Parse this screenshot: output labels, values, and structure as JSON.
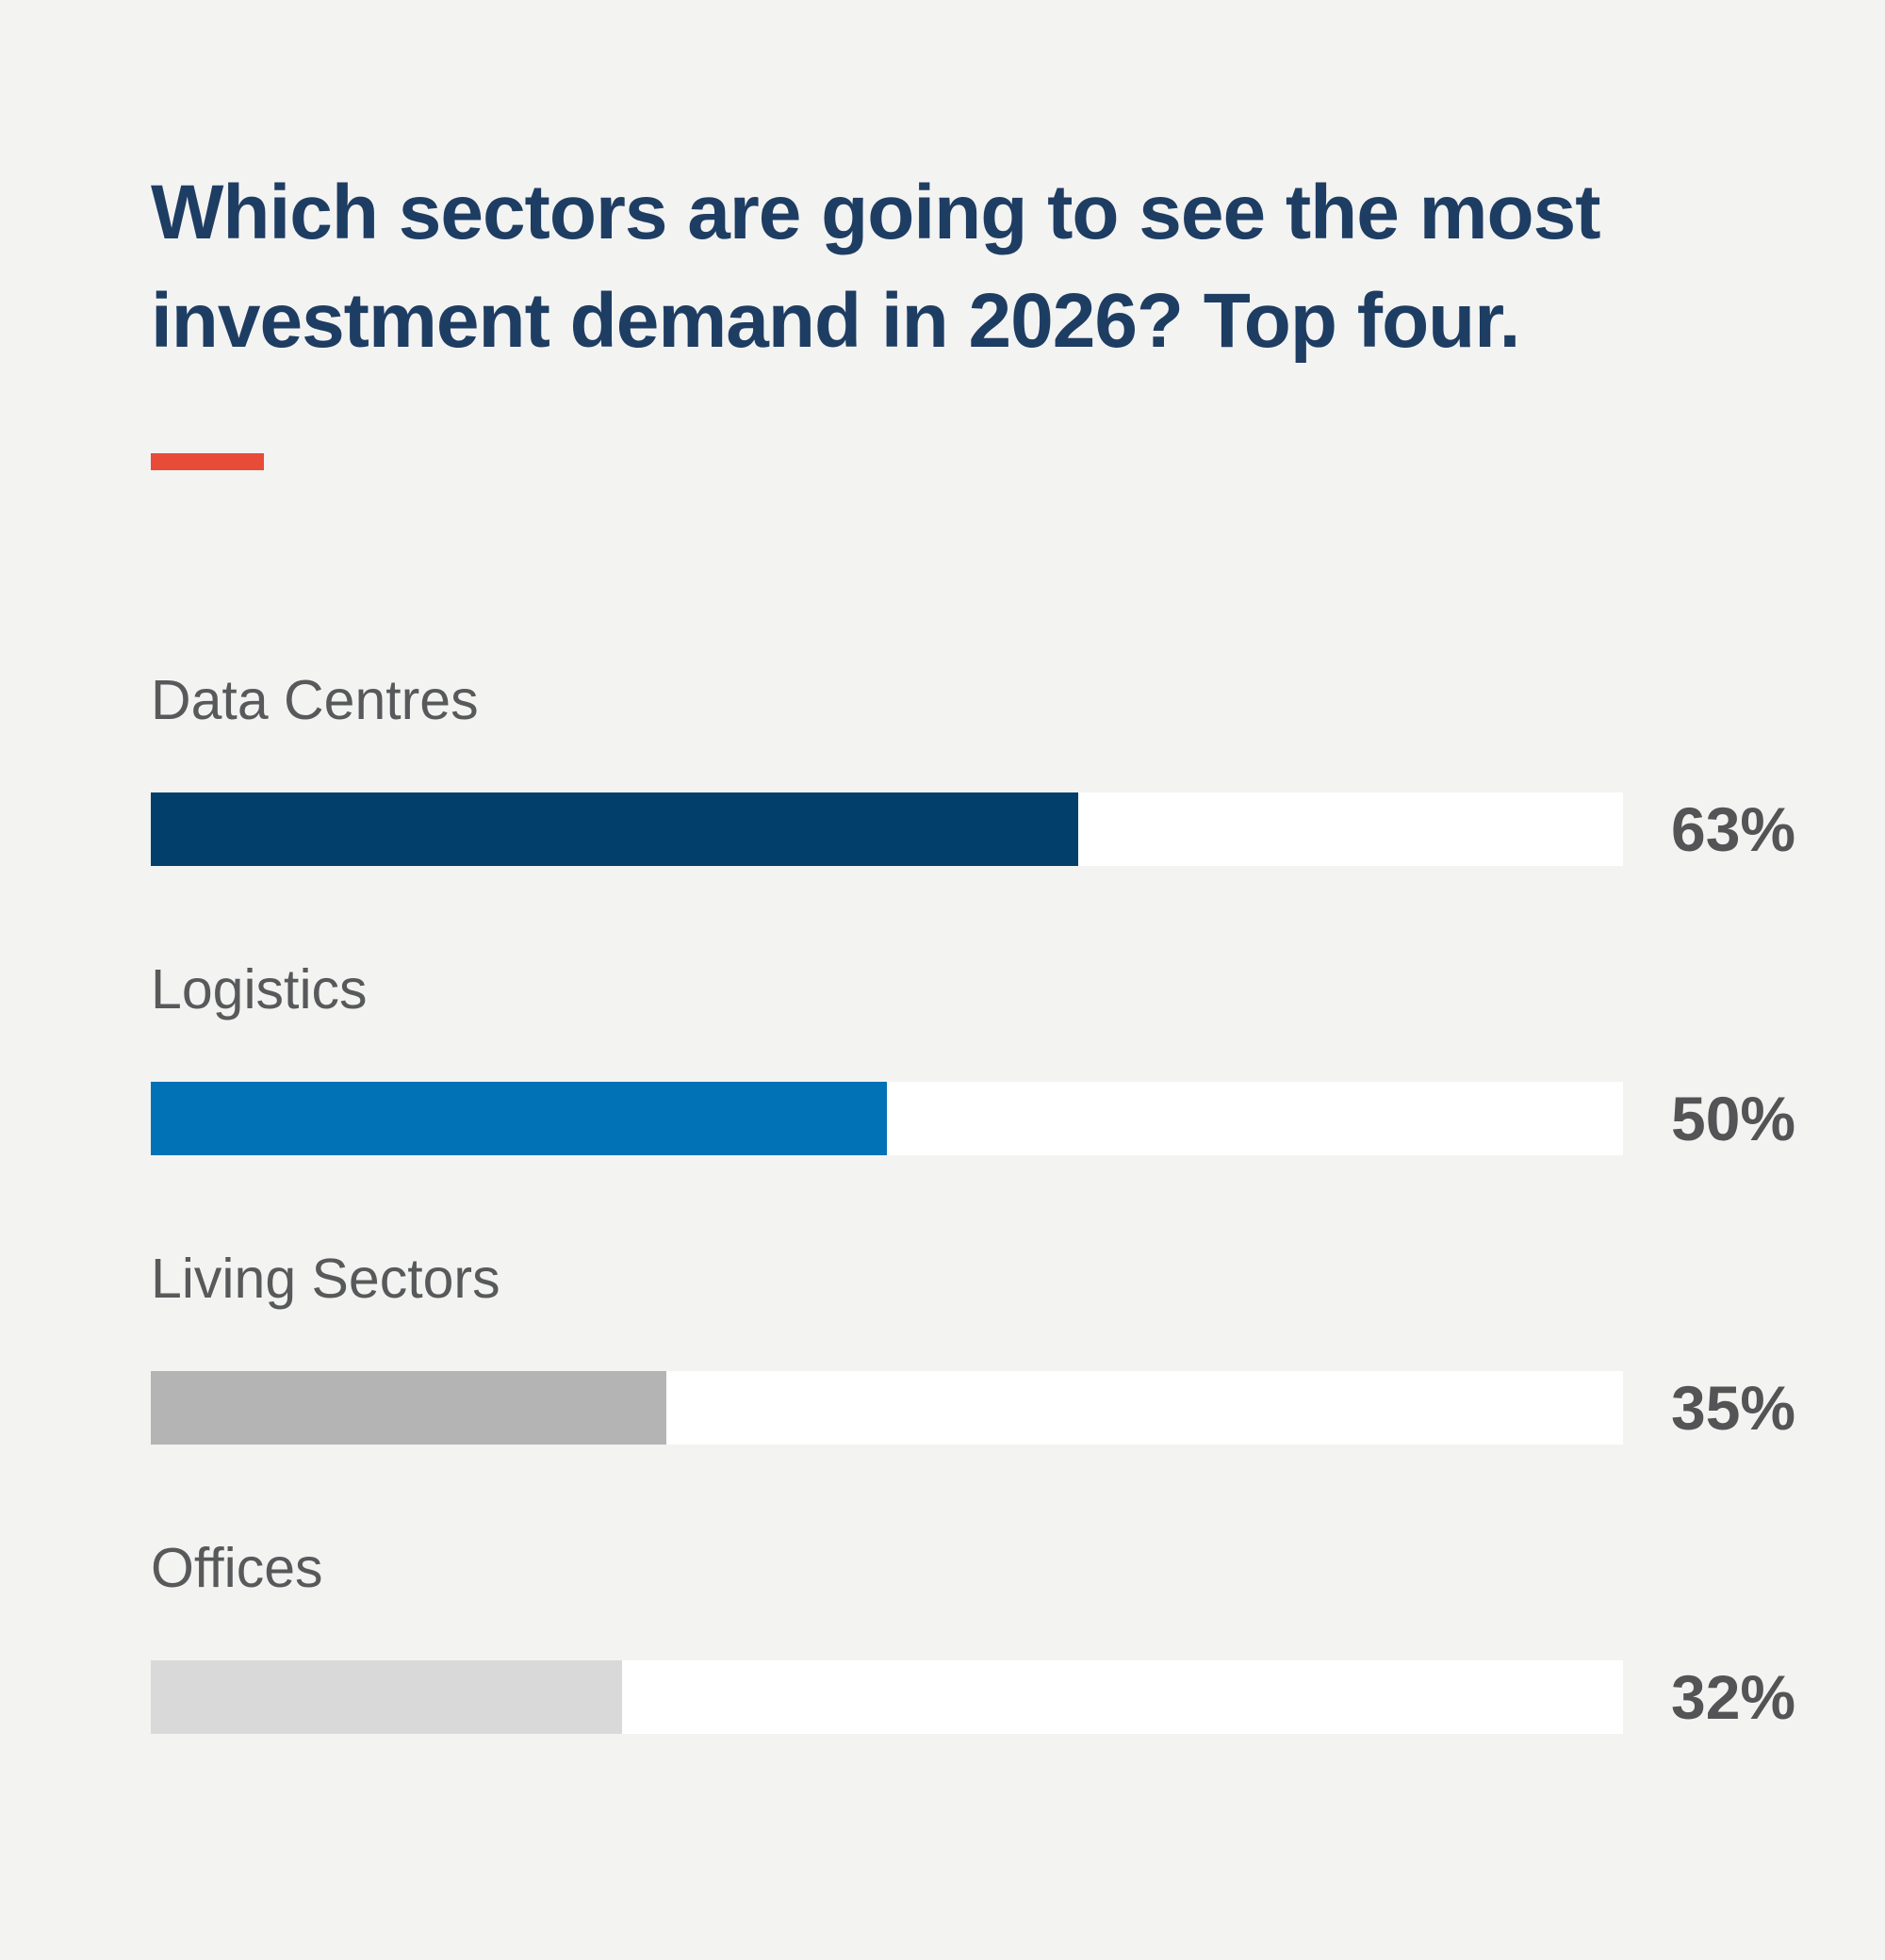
{
  "page": {
    "background_color": "#f3f3f2"
  },
  "header": {
    "title_line1": "Which sectors are going to see the most",
    "title_line2": "investment demand in 2026? Top four.",
    "title_color": "#1e3d63",
    "accent_color": "#e84b37"
  },
  "chart_data": {
    "type": "bar",
    "orientation": "horizontal",
    "title": "Which sectors are going to see the most investment demand in 2026? Top four.",
    "categories": [
      "Data Centres",
      "Logistics",
      "Living Sectors",
      "Offices"
    ],
    "values": [
      63,
      50,
      35,
      32
    ],
    "value_labels": [
      "63%",
      "50%",
      "35%",
      "32%"
    ],
    "bar_colors": [
      "#02406b",
      "#0072b5",
      "#b4b4b4",
      "#d9d9d9"
    ],
    "track_color": "#ffffff",
    "label_color": "#58595b",
    "value_label_color": "#545456",
    "xlim": [
      0,
      100
    ],
    "grid": false,
    "legend": false
  }
}
